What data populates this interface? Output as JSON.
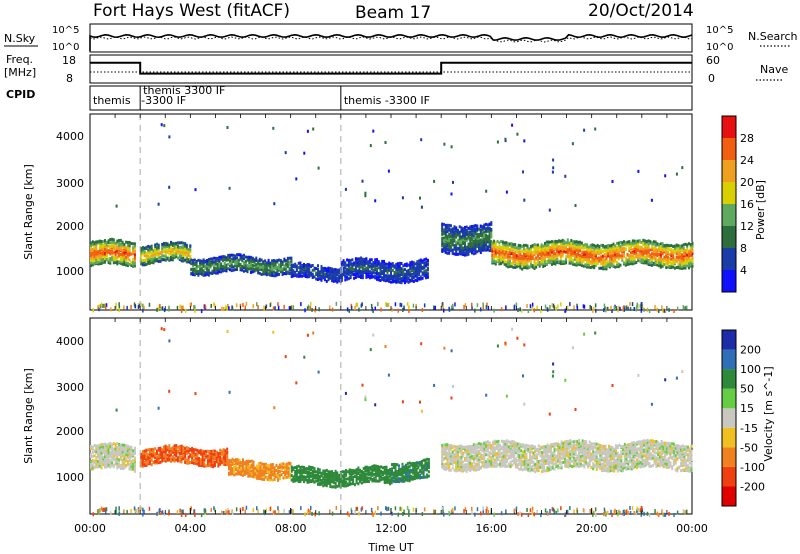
{
  "header": {
    "title": "Fort Hays West (fitACF)",
    "beam": "Beam 17",
    "date": "20/Oct/2014"
  },
  "top_panels": {
    "nsky_label": "N.Sky",
    "nsky_ticks": [
      "10^5",
      "10^0"
    ],
    "nsearch_label": "N.Search",
    "nsearch_ticks": [
      "10^5",
      "10^0"
    ],
    "freq_label": "Freq.",
    "freq_unit": "[MHz]",
    "freq_ticks": [
      "18",
      "8"
    ],
    "nave_label": "Nave",
    "nave_ticks": [
      "60",
      "0"
    ],
    "cpid_label": "CPID",
    "cpid_segments": [
      {
        "label": "themis",
        "start_hour": 0,
        "end_hour": 2
      },
      {
        "label": "themis 3300 IF",
        "start_hour": 2,
        "end_hour": 10
      },
      {
        "label": "-3300 IF",
        "start_hour": 2,
        "end_hour": 10
      },
      {
        "label": "themis -3300 IF",
        "start_hour": 10,
        "end_hour": 24
      }
    ],
    "freq_steps": [
      {
        "start_hour": 0,
        "end_hour": 2,
        "value_mhz": 16
      },
      {
        "start_hour": 2,
        "end_hour": 14,
        "value_mhz": 11.5
      },
      {
        "start_hour": 14,
        "end_hour": 24,
        "value_mhz": 16
      }
    ]
  },
  "x_axis": {
    "label": "Time UT",
    "ticks": [
      "00:00",
      "04:00",
      "08:00",
      "12:00",
      "16:00",
      "20:00",
      "00:00"
    ],
    "range_hours": [
      0,
      24
    ]
  },
  "power_panel": {
    "ylabel": "Slant Range [km]",
    "yticks": [
      "1000",
      "2000",
      "3000",
      "4000"
    ],
    "colorbar_label": "Power [dB]",
    "colorbar_ticks": [
      "4",
      "8",
      "12",
      "16",
      "20",
      "24",
      "28"
    ],
    "colorbar_colors": [
      "#1010ff",
      "#1a3ca8",
      "#2d6e3c",
      "#5fa860",
      "#d8d000",
      "#f0a020",
      "#f06010",
      "#e81010"
    ]
  },
  "velocity_panel": {
    "ylabel": "Slant Range [km]",
    "yticks": [
      "1000",
      "2000",
      "3000",
      "4000"
    ],
    "colorbar_label": "Velocity [m s^-1]",
    "colorbar_ticks": [
      "200",
      "100",
      "50",
      "15",
      "-15",
      "-50",
      "-100",
      "-200"
    ],
    "colorbar_colors": [
      "#1c2ca8",
      "#2f6fb8",
      "#2e8a3a",
      "#66cc44",
      "#c8c8c0",
      "#f0c020",
      "#f08020",
      "#f04010",
      "#e00000"
    ]
  },
  "chart_data": {
    "type": "heatmap",
    "title": "Fort Hays West (fitACF)",
    "xlabel": "Time UT",
    "ylabel": "Slant Range [km]",
    "xlim_hours": [
      0,
      24
    ],
    "ylim_km": [
      180,
      4500
    ],
    "power_bands": [
      {
        "start_hour": 0.0,
        "end_hour": 1.8,
        "center_km": 1450,
        "half_width_km": 250,
        "peak_db": 28
      },
      {
        "start_hour": 2.0,
        "end_hour": 4.0,
        "center_km": 1450,
        "half_width_km": 180,
        "peak_db": 22
      },
      {
        "start_hour": 4.0,
        "end_hour": 8.0,
        "center_km": 1200,
        "half_width_km": 160,
        "peak_db": 14
      },
      {
        "start_hour": 8.0,
        "end_hour": 10.0,
        "center_km": 1050,
        "half_width_km": 150,
        "peak_db": 8
      },
      {
        "start_hour": 10.0,
        "end_hour": 13.5,
        "center_km": 1100,
        "half_width_km": 220,
        "peak_db": 8
      },
      {
        "start_hour": 14.0,
        "end_hour": 16.0,
        "center_km": 1800,
        "half_width_km": 300,
        "peak_db": 12
      },
      {
        "start_hour": 16.0,
        "end_hour": 24.0,
        "center_km": 1450,
        "half_width_km": 260,
        "peak_db": 28
      }
    ],
    "velocity_bands": [
      {
        "start_hour": 0.0,
        "end_hour": 1.8,
        "center_km": 1450,
        "half_width_km": 250,
        "velocity_ms": 0
      },
      {
        "start_hour": 2.0,
        "end_hour": 5.5,
        "center_km": 1500,
        "half_width_km": 170,
        "velocity_ms": -100
      },
      {
        "start_hour": 5.5,
        "end_hour": 8.0,
        "center_km": 1200,
        "half_width_km": 170,
        "velocity_ms": -60
      },
      {
        "start_hour": 8.0,
        "end_hour": 12.0,
        "center_km": 1050,
        "half_width_km": 170,
        "velocity_ms": 50
      },
      {
        "start_hour": 12.0,
        "end_hour": 13.5,
        "center_km": 1200,
        "half_width_km": 200,
        "velocity_ms": 60
      },
      {
        "start_hour": 14.0,
        "end_hour": 24.0,
        "center_km": 1500,
        "half_width_km": 280,
        "velocity_ms": 0
      }
    ]
  }
}
